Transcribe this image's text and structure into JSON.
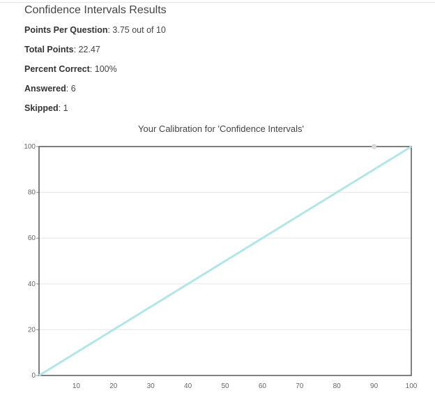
{
  "results": {
    "title": "Confidence Intervals Results",
    "stats": [
      {
        "label": "Points Per Question",
        "value": "3.75 out of 10"
      },
      {
        "label": "Total Points",
        "value": "22.47"
      },
      {
        "label": "Percent Correct",
        "value": "100%"
      },
      {
        "label": "Answered",
        "value": "6"
      },
      {
        "label": "Skipped",
        "value": "1"
      }
    ]
  },
  "colors": {
    "line": "#b2e5e5",
    "point": "#dddddd",
    "frame": "#555555",
    "grid": "#e6e6e6"
  },
  "chart_data": {
    "type": "line",
    "title": "Your Calibration for 'Confidence Intervals'",
    "xlabel": "",
    "ylabel": "",
    "xlim": [
      0,
      100
    ],
    "ylim": [
      0,
      100
    ],
    "x_ticks": [
      "10",
      "20",
      "30",
      "40",
      "50",
      "60",
      "70",
      "80",
      "90",
      "100"
    ],
    "y_ticks": [
      "0",
      "20",
      "40",
      "60",
      "80",
      "100"
    ],
    "grid": true,
    "series": [
      {
        "points": [
          {
            "x": 0,
            "y": 0
          },
          {
            "x": 100,
            "y": 100
          }
        ]
      },
      {
        "points": [
          {
            "x": 90,
            "y": 100
          }
        ]
      }
    ]
  }
}
